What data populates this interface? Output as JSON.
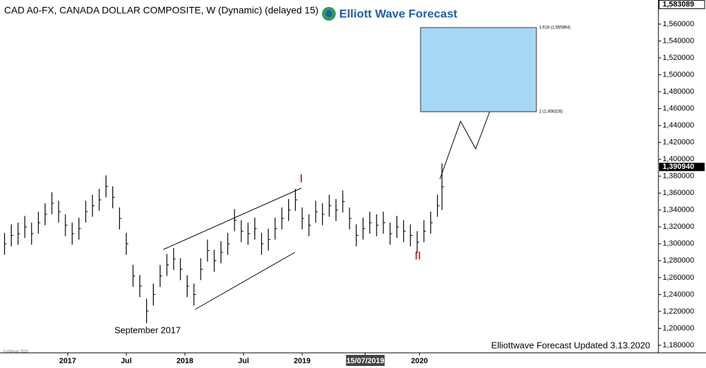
{
  "chart_data": {
    "type": "hl-bars",
    "title": "CAD A0-FX, CANADA DOLLAR COMPOSITE, W (Dynamic) (delayed 15)",
    "logo": "Elliott Wave Forecast",
    "color": "#000000",
    "xlim": [
      -30,
      262
    ],
    "xticks": [
      {
        "value": 0,
        "label": "2017"
      },
      {
        "value": 26,
        "label": "Jul"
      },
      {
        "value": 52,
        "label": "2018"
      },
      {
        "value": 78,
        "label": "Jul"
      },
      {
        "value": 104,
        "label": "2019"
      },
      {
        "value": 132,
        "label": "15/07/2019"
      },
      {
        "value": 156,
        "label": "2020"
      }
    ],
    "ylim": [
      1.171,
      1.5885
    ],
    "yticks": [
      {
        "value": 1.18,
        "label": "1,180000"
      },
      {
        "value": 1.2,
        "label": "1,200000"
      },
      {
        "value": 1.22,
        "label": "1,220000"
      },
      {
        "value": 1.24,
        "label": "1,240000"
      },
      {
        "value": 1.26,
        "label": "1,260000"
      },
      {
        "value": 1.28,
        "label": "1,280000"
      },
      {
        "value": 1.3,
        "label": "1,300000"
      },
      {
        "value": 1.32,
        "label": "1,320000"
      },
      {
        "value": 1.34,
        "label": "1,340000"
      },
      {
        "value": 1.36,
        "label": "1,360000"
      },
      {
        "value": 1.38,
        "label": "1,380000"
      },
      {
        "value": 1.4,
        "label": "1,400000"
      },
      {
        "value": 1.42,
        "label": "1,420000"
      },
      {
        "value": 1.44,
        "label": "1,440000"
      },
      {
        "value": 1.46,
        "label": "1,460000"
      },
      {
        "value": 1.48,
        "label": "1,480000"
      },
      {
        "value": 1.5,
        "label": "1,500000"
      },
      {
        "value": 1.52,
        "label": "1,520000"
      },
      {
        "value": 1.54,
        "label": "1,540000"
      },
      {
        "value": 1.56,
        "label": "1,560000"
      }
    ],
    "x": [
      -28,
      -25,
      -22,
      -19,
      -16,
      -13,
      -10,
      -7,
      -4,
      -1,
      2,
      5,
      8,
      11,
      14,
      17,
      20,
      23,
      26,
      29,
      32,
      35,
      38,
      41,
      44,
      47,
      50,
      53,
      56,
      59,
      62,
      65,
      68,
      71,
      74,
      77,
      80,
      83,
      86,
      89,
      92,
      95,
      98,
      101,
      104,
      107,
      110,
      113,
      116,
      119,
      122,
      125,
      128,
      131,
      134,
      137,
      140,
      143,
      146,
      149,
      152,
      155,
      158,
      161,
      164,
      166
    ],
    "high": [
      1.313,
      1.323,
      1.325,
      1.333,
      1.325,
      1.338,
      1.348,
      1.361,
      1.351,
      1.335,
      1.325,
      1.331,
      1.351,
      1.358,
      1.365,
      1.381,
      1.368,
      1.343,
      1.313,
      1.275,
      1.263,
      1.235,
      1.253,
      1.275,
      1.288,
      1.295,
      1.283,
      1.263,
      1.253,
      1.283,
      1.305,
      1.293,
      1.303,
      1.313,
      1.341,
      1.328,
      1.325,
      1.331,
      1.313,
      1.318,
      1.331,
      1.343,
      1.353,
      1.365,
      1.343,
      1.335,
      1.351,
      1.348,
      1.358,
      1.353,
      1.363,
      1.343,
      1.323,
      1.331,
      1.338,
      1.335,
      1.338,
      1.325,
      1.333,
      1.328,
      1.323,
      1.315,
      1.328,
      1.338,
      1.358,
      1.395
    ],
    "low": [
      1.287,
      1.297,
      1.299,
      1.307,
      1.299,
      1.312,
      1.322,
      1.335,
      1.325,
      1.309,
      1.299,
      1.305,
      1.325,
      1.332,
      1.339,
      1.355,
      1.342,
      1.317,
      1.287,
      1.249,
      1.237,
      1.206,
      1.227,
      1.249,
      1.262,
      1.269,
      1.257,
      1.237,
      1.227,
      1.257,
      1.279,
      1.267,
      1.277,
      1.287,
      1.315,
      1.302,
      1.299,
      1.305,
      1.287,
      1.292,
      1.305,
      1.317,
      1.327,
      1.339,
      1.317,
      1.309,
      1.325,
      1.322,
      1.332,
      1.327,
      1.337,
      1.317,
      1.297,
      1.305,
      1.312,
      1.309,
      1.312,
      1.299,
      1.307,
      1.302,
      1.297,
      1.289,
      1.302,
      1.312,
      1.332,
      1.34
    ],
    "top_price": {
      "value": 1.583089,
      "label": "1,583089"
    },
    "last_price": {
      "value": 1.39094,
      "label": "1,390940"
    },
    "target_box": {
      "low": 1.456326,
      "high": 1.555864,
      "low_label": "1 (1,456326)",
      "high_label": "1.618 (1,555864)",
      "color": "#a6d8f5"
    },
    "annotations": {
      "wave_1": "I",
      "wave_2": "II",
      "low_note": "September 2017",
      "updated": "Elliottwave Forecast Updated 3.13.2020",
      "source": "© eSignal, 2020"
    }
  }
}
